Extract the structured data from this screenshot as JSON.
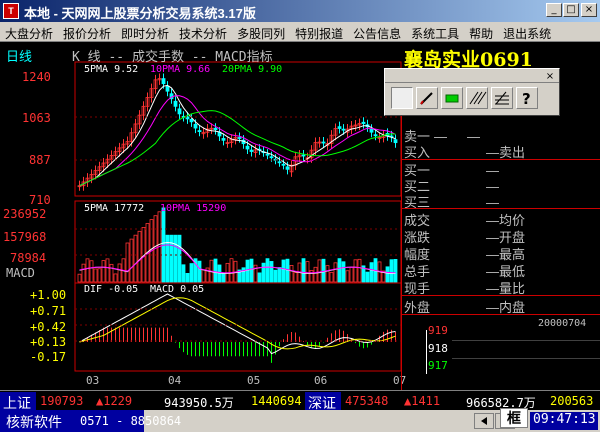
{
  "window": {
    "title": "本地 - 天网网上股票分析交易系统3.17版",
    "icon_text": "T"
  },
  "menu": [
    "大盘分析",
    "报价分析",
    "即时分析",
    "技术分析",
    "多股同列",
    "特别报道",
    "公告信息",
    "系统工具",
    "帮助",
    "退出系统"
  ],
  "chart": {
    "period": "日线",
    "header": "K  线 -- 成交手数 -- MACD指标",
    "stock_name": "襄岛实业0691",
    "ma": {
      "ma5": "5PMA  9.52",
      "ma10": "10PMA  9.66",
      "ma20": "20PMA  9.90"
    },
    "price_ticks": [
      "1240",
      "1063",
      "887",
      "710"
    ],
    "vol_ma": {
      "ma5": "5PMA  17772",
      "ma10": "10PMA  15290"
    },
    "vol_ticks": [
      "236952",
      "157968",
      "78984"
    ],
    "macd_label": "MACD",
    "macd_header": {
      "dif": "DIF  -0.05",
      "macd": "MACD  0.05"
    },
    "macd_ticks": [
      "+1.00",
      "+0.71",
      "+0.42",
      "+0.13",
      "-0.17"
    ],
    "x_ticks": [
      "03",
      "04",
      "05",
      "06",
      "07"
    ],
    "colors": {
      "up": "#ff3333",
      "down": "#00ffff",
      "ma5": "#ffffff",
      "ma10": "#ff00ff",
      "ma20": "#00ff00",
      "frame": "#cc0000",
      "axis_text": "#ff3333"
    }
  },
  "side": {
    "rows_top": [
      {
        "k": "卖一",
        "v": ""
      },
      {
        "k": "买入",
        "v": "卖出"
      },
      {
        "k": "买一",
        "v": ""
      },
      {
        "k": "买二",
        "v": ""
      },
      {
        "k": "买三",
        "v": ""
      },
      {
        "k": "成交",
        "v": "均价"
      },
      {
        "k": "涨跌",
        "v": "开盘"
      },
      {
        "k": "幅度",
        "v": "最高"
      },
      {
        "k": "总手",
        "v": "最低"
      },
      {
        "k": "现手",
        "v": "量比"
      },
      {
        "k": "外盘",
        "v": "内盘"
      }
    ],
    "tick_date": "20000704",
    "tick_prices": [
      "919",
      "918",
      "917"
    ]
  },
  "toolbox": {
    "close": "×",
    "tools": [
      "cursor",
      "pen",
      "rect",
      "lines",
      "parallel",
      "question"
    ]
  },
  "status": {
    "sh_label": "上证",
    "sh_value": "190793",
    "sh_change": "▲1229",
    "sh_vol": "943950.5万",
    "sh_amount": "1440694",
    "sz_label": "深证",
    "sz_value": "475348",
    "sz_change": "▲1411",
    "sz_vol": "966582.7万",
    "sz_amount": "200563",
    "company": "核新软件",
    "phone": "0571 - 8850864",
    "frame_btn": "框",
    "time": "09:47:13"
  }
}
